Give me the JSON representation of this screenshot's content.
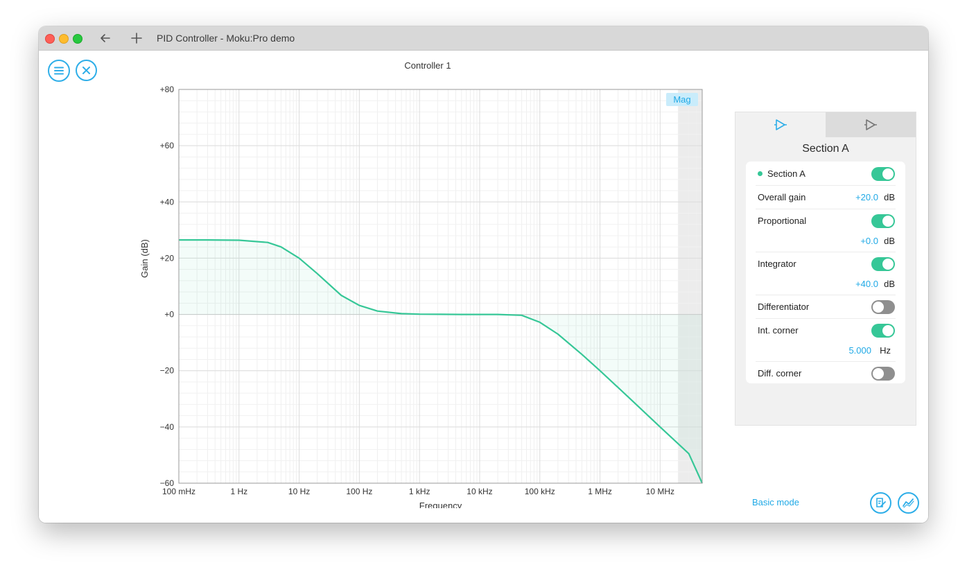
{
  "window": {
    "title": "PID Controller - Moku:Pro demo"
  },
  "page": {
    "title": "Controller 1"
  },
  "colors": {
    "accent": "#1fa9e6",
    "curve": "#36c797",
    "toggle_off": "#8f8f8f"
  },
  "chart_data": {
    "type": "line",
    "xlabel": "Frequency",
    "ylabel": "Gain (dB)",
    "x_scale": "log",
    "xlim": [
      0.1,
      50000000
    ],
    "ylim": [
      -60,
      80
    ],
    "x_ticks": [
      0.1,
      1,
      10,
      100,
      1000,
      10000,
      100000,
      1000000,
      10000000
    ],
    "x_tick_labels": [
      "100 mHz",
      "1 Hz",
      "10 Hz",
      "100 Hz",
      "1 kHz",
      "10 kHz",
      "100 kHz",
      "1 MHz",
      "10 MHz"
    ],
    "y_ticks": [
      80,
      60,
      40,
      20,
      0,
      -20,
      -40,
      -60
    ],
    "y_tick_labels": [
      "+80",
      "+60",
      "+40",
      "+20",
      "+0",
      "−20",
      "−40",
      "−60"
    ],
    "badge": "Mag",
    "grid": true,
    "shaded_region_start_hz": 20000000,
    "series": [
      {
        "x": [
          0.1,
          0.3,
          1,
          3,
          5,
          10,
          20,
          50,
          100,
          200,
          500,
          1000,
          5000,
          20000,
          50000,
          100000,
          200000,
          500000,
          1000000,
          3000000,
          10000000,
          30000000,
          50000000
        ],
        "y": [
          26.5,
          26.5,
          26.4,
          25.6,
          24.0,
          20.0,
          14.5,
          6.8,
          3.2,
          1.2,
          0.3,
          0.1,
          0.0,
          0.0,
          -0.3,
          -2.8,
          -7.0,
          -14.2,
          -20.0,
          -29.5,
          -40.0,
          -49.5,
          -60.0
        ]
      }
    ]
  },
  "panel": {
    "tabs": [
      {
        "icon": "amplifier-icon",
        "active": true
      },
      {
        "icon": "amplifier-icon",
        "active": false
      }
    ],
    "title": "Section A",
    "section_label": "Section A",
    "section_enabled": true,
    "overall_gain": {
      "label": "Overall gain",
      "value": "+20.0",
      "unit": "dB"
    },
    "proportional": {
      "label": "Proportional",
      "enabled": true,
      "value": "+0.0",
      "unit": "dB"
    },
    "integrator": {
      "label": "Integrator",
      "enabled": true,
      "value": "+40.0",
      "unit": "dB"
    },
    "differentiator": {
      "label": "Differentiator",
      "enabled": false
    },
    "int_corner": {
      "label": "Int. corner",
      "enabled": true,
      "value": "5.000",
      "unit": "Hz"
    },
    "diff_corner": {
      "label": "Diff. corner",
      "enabled": false
    }
  },
  "footer": {
    "basic_mode": "Basic mode"
  }
}
